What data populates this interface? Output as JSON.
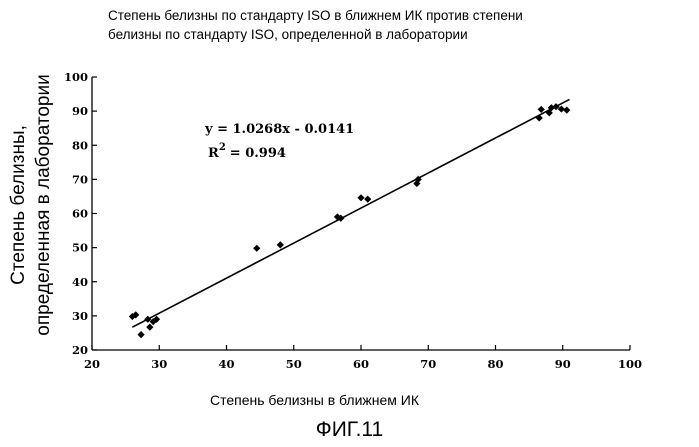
{
  "chart_data": {
    "type": "scatter",
    "title_lines": [
      "Степень белизны по стандарту ISO в ближнем ИК против степени",
      "белизны по стандарту ISO, определенной в лаборатории"
    ],
    "xlabel": "Степень белизны в ближнем ИК",
    "ylabel_lines": [
      "Степень белизны,",
      "определенная в лаборатории"
    ],
    "xlim": [
      20,
      100
    ],
    "ylim": [
      20,
      100
    ],
    "xticks": [
      20,
      30,
      40,
      50,
      60,
      70,
      80,
      90,
      100
    ],
    "yticks": [
      20,
      30,
      40,
      50,
      60,
      70,
      80,
      90,
      100
    ],
    "grid": false,
    "equation": "y = 1.0268x - 0.0141",
    "r2_label": "R",
    "r2_sup": "2",
    "r2_value": "= 0.994",
    "trendline": {
      "slope": 1.0268,
      "intercept": -0.0141,
      "x_range": [
        26,
        91
      ]
    },
    "points": [
      {
        "x": 26.0,
        "y": 29.8
      },
      {
        "x": 26.5,
        "y": 30.3
      },
      {
        "x": 27.3,
        "y": 24.5
      },
      {
        "x": 28.3,
        "y": 29.0
      },
      {
        "x": 28.6,
        "y": 26.7
      },
      {
        "x": 29.1,
        "y": 28.3
      },
      {
        "x": 29.6,
        "y": 29.0
      },
      {
        "x": 44.5,
        "y": 49.8
      },
      {
        "x": 48.0,
        "y": 50.8
      },
      {
        "x": 56.5,
        "y": 59.0
      },
      {
        "x": 57.0,
        "y": 58.6
      },
      {
        "x": 60.0,
        "y": 64.6
      },
      {
        "x": 61.0,
        "y": 64.2
      },
      {
        "x": 68.3,
        "y": 68.8
      },
      {
        "x": 68.5,
        "y": 70.0
      },
      {
        "x": 86.5,
        "y": 88.0
      },
      {
        "x": 86.8,
        "y": 90.5
      },
      {
        "x": 88.0,
        "y": 89.5
      },
      {
        "x": 88.3,
        "y": 91.0
      },
      {
        "x": 89.0,
        "y": 91.3
      },
      {
        "x": 89.8,
        "y": 90.6
      },
      {
        "x": 90.6,
        "y": 90.3
      }
    ],
    "marker_color": "#000000",
    "line_color": "#000000"
  },
  "figure_caption": "ФИГ.11"
}
